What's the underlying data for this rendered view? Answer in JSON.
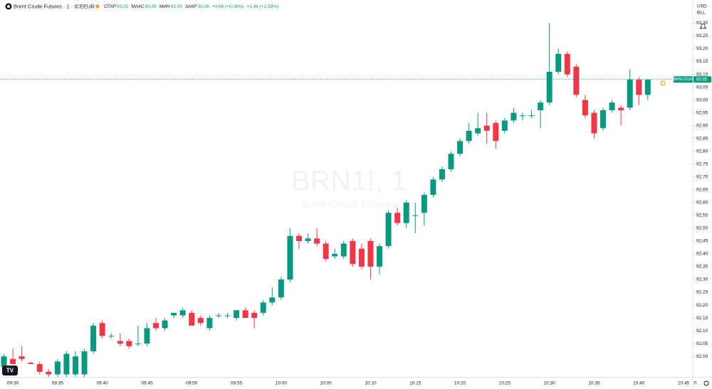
{
  "chart_data": {
    "type": "candlestick",
    "symbol": "Brent Crude Futures · 1 · ICEEUR",
    "ohlc_legend": [
      {
        "label": "ОТКР",
        "value": "93,02"
      },
      {
        "label": "МАКС",
        "value": "93,08"
      },
      {
        "label": "МИН",
        "value": "93,00"
      },
      {
        "label": "ЗАКР",
        "value": "93,08"
      }
    ],
    "change": "+0,06 (+0,06%)",
    "change_day": "+1,46 (+1,59%)",
    "watermark": "BRN1!, 1",
    "watermark_subtitle": "Brent Crude Futures",
    "currency": "USD",
    "unit": "BLL",
    "price_tag": "BRNV2026",
    "countdown": "00:35",
    "log_toggle": "Л",
    "last_price": 93.08,
    "up_color": "#089981",
    "down_color": "#f23645",
    "categories": [
      null,
      "09:30",
      null,
      null,
      null,
      null,
      "09:35",
      null,
      null,
      null,
      null,
      "09:40",
      null,
      null,
      null,
      null,
      "09:45",
      null,
      null,
      null,
      null,
      "09:50",
      null,
      null,
      null,
      null,
      "09:55",
      null,
      null,
      null,
      null,
      "10:00",
      null,
      null,
      null,
      null,
      "10:05",
      null,
      null,
      null,
      null,
      "10:10",
      null,
      null,
      null,
      null,
      "10:15",
      null,
      null,
      null,
      null,
      "10:20",
      null,
      null,
      null,
      null,
      "10:25",
      null,
      null,
      null,
      null,
      "10:30",
      null,
      null,
      null,
      null,
      "10:35",
      null,
      null,
      null,
      null,
      "10:40",
      null,
      null,
      null,
      null,
      "10:45"
    ],
    "open": [
      91.96,
      91.99,
      92.0,
      91.975,
      91.97,
      91.94,
      91.93,
      91.93,
      91.93,
      91.93,
      92.02,
      92.13,
      92.08,
      92.06,
      92.06,
      92.05,
      92.05,
      92.13,
      92.11,
      92.16,
      92.16,
      92.17,
      92.15,
      92.11,
      92.16,
      92.16,
      92.15,
      92.18,
      92.17,
      92.17,
      92.21,
      92.23,
      92.3,
      92.47,
      92.45,
      92.46,
      92.44,
      92.39,
      92.39,
      92.45,
      92.42,
      92.45,
      92.35,
      92.43,
      92.56,
      92.52,
      92.55,
      92.56,
      92.63,
      92.69,
      92.73,
      92.79,
      92.84,
      92.87,
      92.9,
      92.91,
      92.88,
      92.92,
      92.94,
      92.94,
      92.96,
      92.99,
      93.11,
      93.18,
      93.13,
      93.0,
      92.95,
      92.89,
      92.96,
      92.97,
      92.97,
      93.08,
      93.02,
      null,
      null,
      null,
      null
    ],
    "high": [
      92.01,
      92.03,
      92.04,
      91.98,
      91.98,
      91.95,
      91.99,
      92.02,
      92.02,
      92.03,
      92.13,
      92.14,
      92.09,
      92.09,
      92.07,
      92.12,
      92.13,
      92.15,
      92.15,
      92.17,
      92.19,
      92.18,
      92.16,
      92.16,
      92.17,
      92.17,
      92.18,
      92.19,
      92.18,
      92.22,
      92.27,
      92.31,
      92.5,
      92.48,
      92.48,
      92.5,
      92.45,
      92.42,
      92.45,
      92.46,
      92.44,
      92.46,
      92.44,
      92.57,
      92.58,
      92.61,
      92.6,
      92.64,
      92.7,
      92.74,
      92.8,
      92.85,
      92.91,
      92.95,
      92.95,
      92.92,
      92.93,
      92.97,
      92.95,
      92.96,
      93.0,
      93.3,
      93.2,
      93.19,
      93.14,
      93.02,
      92.96,
      92.97,
      93.0,
      92.98,
      93.12,
      93.09,
      93.08,
      null,
      null,
      null,
      null
    ],
    "low": [
      91.93,
      91.97,
      91.98,
      91.97,
      91.93,
      91.92,
      91.92,
      91.92,
      91.92,
      91.92,
      92.01,
      92.07,
      92.07,
      92.04,
      92.03,
      92.04,
      92.04,
      92.1,
      92.1,
      92.15,
      92.15,
      92.12,
      92.12,
      92.1,
      92.15,
      92.15,
      92.14,
      92.15,
      92.11,
      92.16,
      92.2,
      92.22,
      92.29,
      92.42,
      92.44,
      92.43,
      92.37,
      92.38,
      92.38,
      92.35,
      92.34,
      92.3,
      92.32,
      92.42,
      92.51,
      92.5,
      92.48,
      92.51,
      92.62,
      92.68,
      92.72,
      92.78,
      92.83,
      92.86,
      92.83,
      92.81,
      92.87,
      92.91,
      92.92,
      92.93,
      92.89,
      92.98,
      93.1,
      93.09,
      93.01,
      92.93,
      92.85,
      92.88,
      92.95,
      92.9,
      92.96,
      92.98,
      93.0,
      null,
      null,
      null,
      null
    ],
    "close": [
      92.0,
      91.97,
      91.99,
      91.97,
      91.94,
      91.93,
      91.98,
      92.01,
      92.0,
      92.02,
      92.12,
      92.08,
      92.08,
      92.05,
      92.04,
      92.05,
      92.11,
      92.11,
      92.14,
      92.17,
      92.18,
      92.12,
      92.13,
      92.15,
      92.16,
      92.16,
      92.18,
      92.15,
      92.15,
      92.21,
      92.23,
      92.3,
      92.47,
      92.45,
      92.46,
      92.44,
      92.38,
      92.4,
      92.44,
      92.36,
      92.35,
      92.35,
      92.43,
      92.56,
      92.52,
      92.6,
      92.55,
      92.63,
      92.69,
      92.73,
      92.79,
      92.84,
      92.88,
      92.89,
      92.88,
      92.84,
      92.92,
      92.95,
      92.94,
      92.94,
      92.99,
      93.11,
      93.18,
      93.1,
      93.02,
      92.94,
      92.87,
      92.96,
      92.99,
      92.96,
      93.08,
      93.02,
      93.08,
      null,
      null,
      null,
      null
    ],
    "ylim": [
      91.92,
      93.34
    ],
    "yticks": [
      {
        "value": 92.0,
        "label": "92,00"
      },
      {
        "value": 92.05,
        "label": "92,05"
      },
      {
        "value": 92.1,
        "label": "92,10"
      },
      {
        "value": 92.15,
        "label": "92,15"
      },
      {
        "value": 92.2,
        "label": "92,20"
      },
      {
        "value": 92.25,
        "label": "92,25"
      },
      {
        "value": 92.3,
        "label": "92,30"
      },
      {
        "value": 92.35,
        "label": "92,35"
      },
      {
        "value": 92.4,
        "label": "92,40"
      },
      {
        "value": 92.45,
        "label": "92,45"
      },
      {
        "value": 92.5,
        "label": "92,50"
      },
      {
        "value": 92.55,
        "label": "92,55"
      },
      {
        "value": 92.6,
        "label": "92,60"
      },
      {
        "value": 92.65,
        "label": "92,65"
      },
      {
        "value": 92.7,
        "label": "92,70"
      },
      {
        "value": 92.75,
        "label": "92,75"
      },
      {
        "value": 92.8,
        "label": "92,80"
      },
      {
        "value": 92.85,
        "label": "92,85"
      },
      {
        "value": 92.9,
        "label": "92,90"
      },
      {
        "value": 92.95,
        "label": "92,95"
      },
      {
        "value": 93.0,
        "label": "93,00"
      },
      {
        "value": 93.05,
        "label": "93,05"
      },
      {
        "value": 93.1,
        "label": "93,10"
      },
      {
        "value": 93.15,
        "label": "93,15"
      },
      {
        "value": 93.2,
        "label": "93,20"
      },
      {
        "value": 93.25,
        "label": "93,25"
      },
      {
        "value": 93.3,
        "label": "93,30"
      }
    ]
  }
}
